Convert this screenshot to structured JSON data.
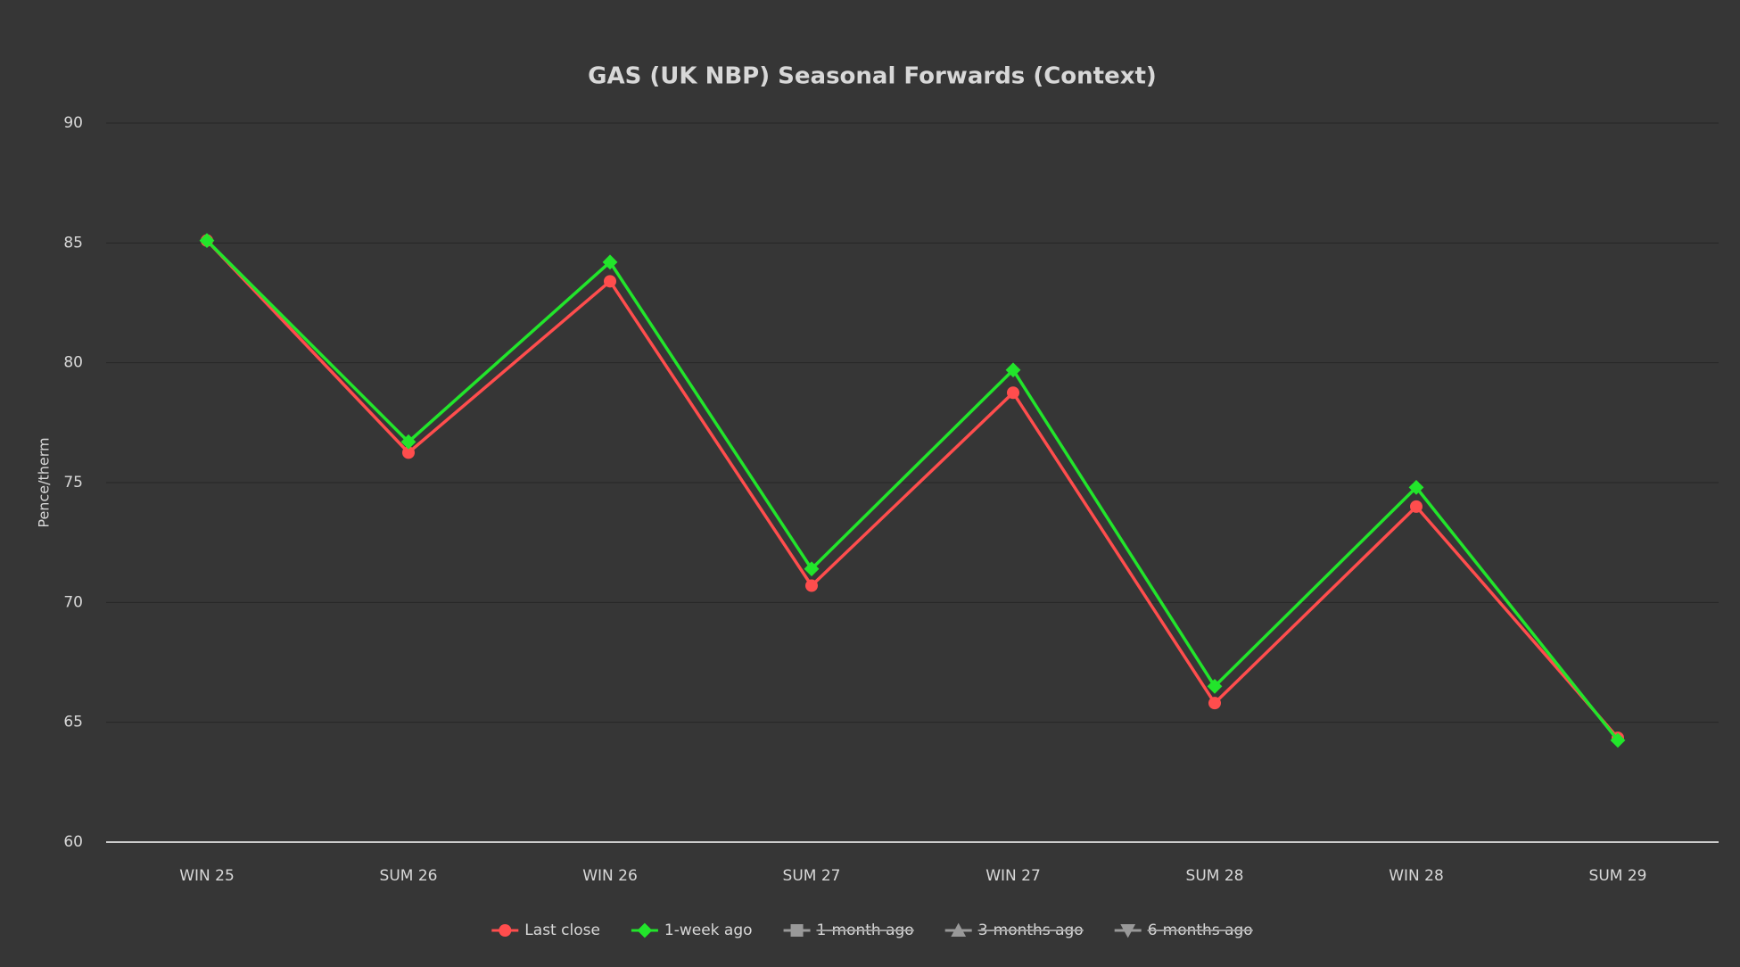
{
  "chart_data": {
    "type": "line",
    "title": "GAS (UK NBP) Seasonal Forwards (Context)",
    "y_label": "Pence/therm",
    "categories": [
      "WIN 25",
      "SUM 26",
      "WIN 26",
      "SUM 27",
      "WIN 27",
      "SUM 28",
      "WIN 28",
      "SUM 29"
    ],
    "series": [
      {
        "name": "Last close",
        "color": "#ff4d4d",
        "marker": "circle",
        "hidden": false,
        "values": [
          85.1,
          76.25,
          83.4,
          70.7,
          78.75,
          65.8,
          74.0,
          64.35
        ]
      },
      {
        "name": "1-week ago",
        "color": "#22e52b",
        "marker": "diamond",
        "hidden": false,
        "values": [
          85.1,
          76.7,
          84.2,
          71.4,
          79.7,
          66.5,
          74.8,
          64.25
        ]
      },
      {
        "name": "1-month ago",
        "color": "#999999",
        "marker": "square",
        "hidden": true,
        "values": [
          null,
          null,
          null,
          null,
          null,
          null,
          null,
          null
        ]
      },
      {
        "name": "3-months ago",
        "color": "#999999",
        "marker": "triangle",
        "hidden": true,
        "values": [
          null,
          null,
          null,
          null,
          null,
          null,
          null,
          null
        ]
      },
      {
        "name": "6-months ago",
        "color": "#999999",
        "marker": "triangle-down",
        "hidden": true,
        "values": [
          null,
          null,
          null,
          null,
          null,
          null,
          null,
          null
        ]
      }
    ],
    "ylim": [
      60,
      90
    ],
    "yticks": [
      60,
      65,
      70,
      75,
      80,
      85,
      90
    ],
    "grid": true,
    "legend": "bottom"
  }
}
